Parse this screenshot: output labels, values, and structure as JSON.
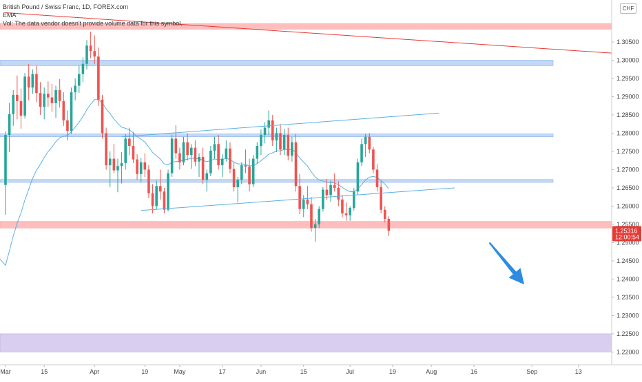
{
  "header": {
    "title": "British Pound / Swiss Franc, 1D, FOREX.com",
    "indicator": "EMA",
    "volume_note": "Vol: The data vendor doesn't provide volume data for this symbol."
  },
  "currency_label": "CHF",
  "colors": {
    "up": "#26a69a",
    "down": "#ef5350",
    "ema": "#5ab0e6",
    "trendline_blue": "#5ab0e6",
    "trendline_red": "#e53935",
    "zone_blue": "#b7d1f5",
    "zone_red": "#ffb3b3",
    "zone_purple": "#d2c5ec",
    "arrow": "#2d8ce0",
    "price_tag": "#e53935"
  },
  "price_tag": {
    "price": "1.25316",
    "countdown": "12:00:54"
  },
  "chart_data": {
    "type": "candlestick",
    "title": "British Pound / Swiss Franc, 1D, FOREX.com",
    "ylim": [
      1.2165,
      1.3165
    ],
    "y_ticks": [
      "1.30500",
      "1.30000",
      "1.29500",
      "1.29000",
      "1.28500",
      "1.28000",
      "1.27500",
      "1.27000",
      "1.26500",
      "1.26000",
      "1.25500",
      "1.25000",
      "1.24500",
      "1.24000",
      "1.23500",
      "1.23000",
      "1.22500",
      "1.22000"
    ],
    "x_ticks": [
      {
        "label": "Mar",
        "index": 0
      },
      {
        "label": "15",
        "index": 10
      },
      {
        "label": "Apr",
        "index": 23
      },
      {
        "label": "19",
        "index": 36
      },
      {
        "label": "May",
        "index": 45
      },
      {
        "label": "17",
        "index": 56
      },
      {
        "label": "Jun",
        "index": 66
      },
      {
        "label": "15",
        "index": 77
      },
      {
        "label": "Jul",
        "index": 89
      },
      {
        "label": "19",
        "index": 100
      },
      {
        "label": "Aug",
        "index": 110
      },
      {
        "label": "16",
        "index": 121
      },
      {
        "label": "Sep",
        "index": 136
      },
      {
        "label": "13",
        "index": 148
      }
    ],
    "zones": [
      {
        "color": "red",
        "y1": 1.3085,
        "y2": 1.31
      },
      {
        "color": "blue",
        "y1": 1.2985,
        "y2": 1.3
      },
      {
        "color": "blue",
        "y1": 1.279,
        "y2": 1.2798
      },
      {
        "color": "blue",
        "y1": 1.2665,
        "y2": 1.2673
      },
      {
        "color": "red",
        "y1": 1.254,
        "y2": 1.2558
      },
      {
        "color": "purple",
        "y1": 1.22,
        "y2": 1.225
      }
    ],
    "trendlines": [
      {
        "color": "red",
        "x1": 0,
        "y1": 1.313,
        "x2": 163,
        "y2": 1.3015
      },
      {
        "color": "blue",
        "x1": 30,
        "y1": 1.279,
        "x2": 112,
        "y2": 1.2855
      },
      {
        "color": "blue",
        "x1": 35,
        "y1": 1.2588,
        "x2": 116,
        "y2": 1.265
      }
    ],
    "arrow": {
      "from": {
        "x": 125,
        "y": 1.25
      },
      "to": {
        "x": 134,
        "y": 1.2385
      }
    },
    "candles": [
      [
        1.2658,
        1.2805,
        1.2576,
        1.2795
      ],
      [
        1.2795,
        1.2882,
        1.2748,
        1.2852
      ],
      [
        1.2852,
        1.2918,
        1.282,
        1.2905
      ],
      [
        1.2905,
        1.2958,
        1.2838,
        1.2888
      ],
      [
        1.2888,
        1.2922,
        1.2812,
        1.2848
      ],
      [
        1.2848,
        1.2965,
        1.284,
        1.2955
      ],
      [
        1.2955,
        1.299,
        1.289,
        1.2925
      ],
      [
        1.2925,
        1.2975,
        1.2908,
        1.2962
      ],
      [
        1.2962,
        1.2985,
        1.2885,
        1.291
      ],
      [
        1.291,
        1.294,
        1.285,
        1.2872
      ],
      [
        1.2872,
        1.2925,
        1.2838,
        1.2908
      ],
      [
        1.2908,
        1.2942,
        1.2872,
        1.2898
      ],
      [
        1.2898,
        1.2935,
        1.2858,
        1.2882
      ],
      [
        1.2882,
        1.293,
        1.2842,
        1.2918
      ],
      [
        1.2918,
        1.2948,
        1.287,
        1.2888
      ],
      [
        1.2888,
        1.2912,
        1.282,
        1.2835
      ],
      [
        1.2835,
        1.2862,
        1.278,
        1.2806
      ],
      [
        1.2806,
        1.2925,
        1.2798,
        1.2912
      ],
      [
        1.2912,
        1.295,
        1.289,
        1.293
      ],
      [
        1.293,
        1.2985,
        1.291,
        1.2962
      ],
      [
        1.2962,
        1.3008,
        1.294,
        1.299
      ],
      [
        1.299,
        1.3055,
        1.2975,
        1.304
      ],
      [
        1.304,
        1.3078,
        1.3005,
        1.3025
      ],
      [
        1.3025,
        1.3068,
        1.299,
        1.301
      ],
      [
        1.301,
        1.3035,
        1.2875,
        1.2892
      ],
      [
        1.2892,
        1.2905,
        1.2785,
        1.28
      ],
      [
        1.28,
        1.2815,
        1.27,
        1.2712
      ],
      [
        1.2712,
        1.275,
        1.2652,
        1.273
      ],
      [
        1.273,
        1.277,
        1.269,
        1.2698
      ],
      [
        1.2698,
        1.273,
        1.2638,
        1.271
      ],
      [
        1.271,
        1.2748,
        1.2662,
        1.2718
      ],
      [
        1.2718,
        1.2798,
        1.27,
        1.2785
      ],
      [
        1.2785,
        1.2815,
        1.274,
        1.2765
      ],
      [
        1.2765,
        1.2802,
        1.2718,
        1.2728
      ],
      [
        1.2728,
        1.2742,
        1.2672,
        1.2688
      ],
      [
        1.2688,
        1.2732,
        1.2665,
        1.272
      ],
      [
        1.272,
        1.2745,
        1.268,
        1.27
      ],
      [
        1.27,
        1.2712,
        1.2622,
        1.2635
      ],
      [
        1.2635,
        1.266,
        1.258,
        1.26
      ],
      [
        1.26,
        1.267,
        1.259,
        1.2655
      ],
      [
        1.2655,
        1.27,
        1.2618,
        1.264
      ],
      [
        1.264,
        1.265,
        1.258,
        1.259
      ],
      [
        1.259,
        1.27,
        1.2585,
        1.269
      ],
      [
        1.269,
        1.2795,
        1.268,
        1.2785
      ],
      [
        1.2785,
        1.2822,
        1.273,
        1.2745
      ],
      [
        1.2745,
        1.276,
        1.27,
        1.272
      ],
      [
        1.272,
        1.279,
        1.2712,
        1.2775
      ],
      [
        1.2775,
        1.28,
        1.2725,
        1.274
      ],
      [
        1.274,
        1.277,
        1.2702,
        1.276
      ],
      [
        1.276,
        1.278,
        1.271,
        1.2722
      ],
      [
        1.2722,
        1.2745,
        1.268,
        1.2735
      ],
      [
        1.2735,
        1.276,
        1.266,
        1.2672
      ],
      [
        1.2672,
        1.27,
        1.264,
        1.269
      ],
      [
        1.269,
        1.2765,
        1.2682,
        1.2752
      ],
      [
        1.2752,
        1.279,
        1.273,
        1.277
      ],
      [
        1.277,
        1.2795,
        1.27,
        1.2712
      ],
      [
        1.2712,
        1.2742,
        1.268,
        1.273
      ],
      [
        1.273,
        1.278,
        1.2722,
        1.2758
      ],
      [
        1.2758,
        1.2775,
        1.269,
        1.2702
      ],
      [
        1.2702,
        1.272,
        1.264,
        1.2652
      ],
      [
        1.2652,
        1.268,
        1.261,
        1.2672
      ],
      [
        1.2672,
        1.272,
        1.266,
        1.2712
      ],
      [
        1.2712,
        1.2755,
        1.269,
        1.2708
      ],
      [
        1.2708,
        1.273,
        1.264,
        1.266
      ],
      [
        1.266,
        1.274,
        1.2652,
        1.273
      ],
      [
        1.273,
        1.2775,
        1.2715,
        1.2765
      ],
      [
        1.2765,
        1.281,
        1.274,
        1.2795
      ],
      [
        1.2795,
        1.283,
        1.2772,
        1.2815
      ],
      [
        1.2815,
        1.2862,
        1.2795,
        1.2835
      ],
      [
        1.2835,
        1.285,
        1.2765,
        1.278
      ],
      [
        1.278,
        1.2815,
        1.2748,
        1.28
      ],
      [
        1.28,
        1.2825,
        1.274,
        1.2755
      ],
      [
        1.2755,
        1.2812,
        1.274,
        1.2795
      ],
      [
        1.2795,
        1.2815,
        1.2725,
        1.2738
      ],
      [
        1.2738,
        1.279,
        1.2722,
        1.2775
      ],
      [
        1.2775,
        1.2798,
        1.264,
        1.2655
      ],
      [
        1.2655,
        1.2688,
        1.2578,
        1.2592
      ],
      [
        1.2592,
        1.263,
        1.257,
        1.2618
      ],
      [
        1.2618,
        1.2655,
        1.2592,
        1.2605
      ],
      [
        1.2605,
        1.2625,
        1.253,
        1.254
      ],
      [
        1.254,
        1.2565,
        1.2502,
        1.255
      ],
      [
        1.255,
        1.26,
        1.254,
        1.2592
      ],
      [
        1.2592,
        1.2652,
        1.2585,
        1.2645
      ],
      [
        1.2645,
        1.2675,
        1.2618,
        1.263
      ],
      [
        1.263,
        1.267,
        1.2612,
        1.2658
      ],
      [
        1.2658,
        1.269,
        1.264,
        1.265
      ],
      [
        1.265,
        1.2668,
        1.26,
        1.2618
      ],
      [
        1.2618,
        1.263,
        1.257,
        1.258
      ],
      [
        1.258,
        1.261,
        1.256,
        1.2575
      ],
      [
        1.2575,
        1.26,
        1.256,
        1.2595
      ],
      [
        1.2595,
        1.265,
        1.2588,
        1.264
      ],
      [
        1.264,
        1.273,
        1.2632,
        1.272
      ],
      [
        1.272,
        1.2785,
        1.271,
        1.277
      ],
      [
        1.277,
        1.2798,
        1.2735,
        1.279
      ],
      [
        1.279,
        1.28,
        1.2745,
        1.2755
      ],
      [
        1.2755,
        1.2762,
        1.269,
        1.27
      ],
      [
        1.27,
        1.2715,
        1.264,
        1.2652
      ],
      [
        1.2652,
        1.2668,
        1.258,
        1.259
      ],
      [
        1.259,
        1.26,
        1.2555,
        1.2565
      ],
      [
        1.2565,
        1.2572,
        1.2518,
        1.2532
      ]
    ]
  }
}
